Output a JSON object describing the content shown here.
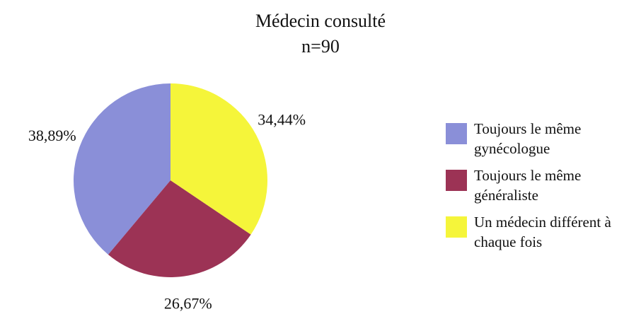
{
  "chart_data": {
    "type": "pie",
    "title": "Médecin consulté",
    "subtitle": "n=90",
    "series": [
      {
        "name": "Toujours le même gynécologue",
        "color": "#8a8fd8"
      },
      {
        "name": "Toujours le même généraliste",
        "color": "#9c3355"
      },
      {
        "name": "Un médecin différent à chaque fois",
        "color": "#f5f53a"
      }
    ],
    "values": [
      38.89,
      26.67,
      34.44
    ],
    "value_labels": [
      "38,89%",
      "26,67%",
      "34,44%"
    ],
    "legend": "right"
  }
}
